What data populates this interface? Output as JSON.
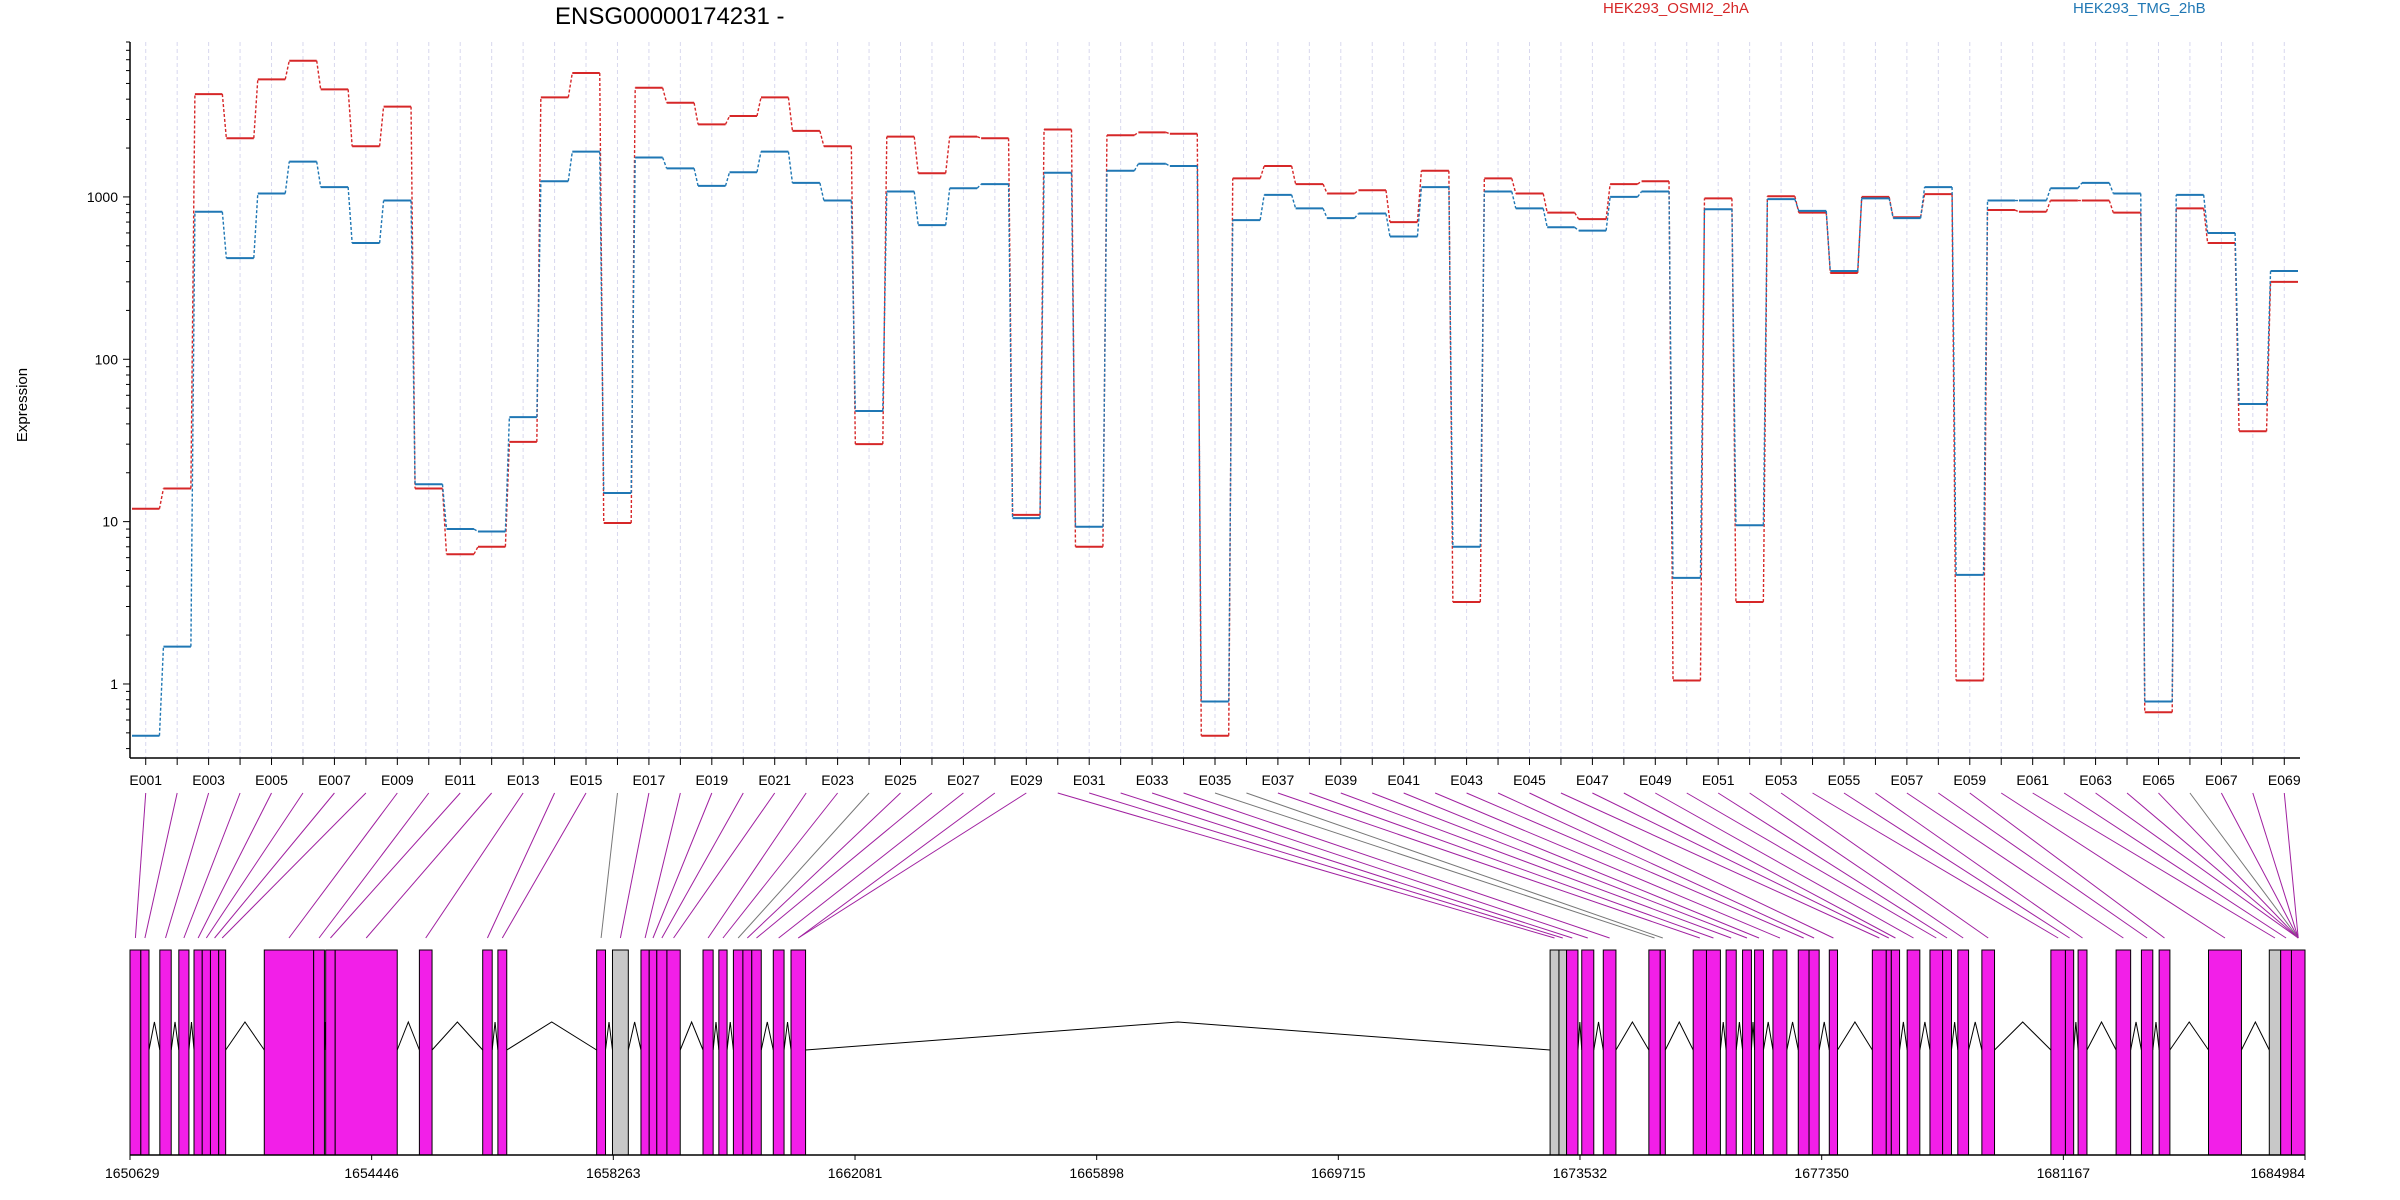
{
  "chart_data": {
    "type": "line",
    "title": "ENSG00000174231 -",
    "ylabel": "Expression",
    "yscale": "log",
    "ylim": [
      0.35,
      9000
    ],
    "yticks": [
      1,
      10,
      100,
      1000
    ],
    "ytick_labels": [
      "1",
      "10",
      "100",
      "1000"
    ],
    "legend_position": "top",
    "series": [
      {
        "name": "HEK293_OSMI2_2hA",
        "color": "#d62728",
        "values": [
          12,
          16,
          4300,
          2300,
          5300,
          6900,
          4600,
          2050,
          3600,
          16,
          6.3,
          7,
          31,
          4100,
          5800,
          9.8,
          4700,
          3800,
          2800,
          3150,
          4100,
          2550,
          2050,
          30,
          2350,
          1400,
          2350,
          2300,
          11,
          2600,
          7,
          2400,
          2500,
          2450,
          0.48,
          1300,
          1550,
          1200,
          1050,
          1100,
          700,
          1450,
          3.2,
          1300,
          1050,
          800,
          730,
          1200,
          1250,
          1.05,
          980,
          3.2,
          1010,
          800,
          340,
          1000,
          750,
          1040,
          1.05,
          830,
          810,
          950,
          950,
          800,
          0.67,
          850,
          520,
          36,
          300
        ]
      },
      {
        "name": "HEK293_TMG_2hB",
        "color": "#1f77b4",
        "values": [
          0.48,
          1.7,
          810,
          420,
          1050,
          1650,
          1150,
          520,
          950,
          17,
          9,
          8.7,
          44,
          1250,
          1900,
          15,
          1750,
          1500,
          1170,
          1420,
          1900,
          1220,
          950,
          48,
          1080,
          670,
          1130,
          1200,
          10.5,
          1410,
          9.3,
          1450,
          1600,
          1550,
          0.78,
          720,
          1030,
          850,
          740,
          790,
          570,
          1150,
          7,
          1080,
          850,
          650,
          620,
          1000,
          1080,
          4.5,
          840,
          9.5,
          970,
          820,
          350,
          980,
          740,
          1150,
          4.7,
          950,
          950,
          1130,
          1220,
          1050,
          0.78,
          1030,
          600,
          53,
          350
        ]
      }
    ],
    "categories": [
      "E001",
      "E002",
      "E003",
      "E004",
      "E005",
      "E006",
      "E007",
      "E008",
      "E009",
      "E010",
      "E011",
      "E012",
      "E013",
      "E014",
      "E015",
      "E016",
      "E017",
      "E018",
      "E019",
      "E020",
      "E021",
      "E022",
      "E023",
      "E024",
      "E025",
      "E026",
      "E027",
      "E028",
      "E029",
      "E030",
      "E031",
      "E032",
      "E033",
      "E034",
      "E035",
      "E036",
      "E037",
      "E038",
      "E039",
      "E040",
      "E041",
      "E042",
      "E043",
      "E044",
      "E045",
      "E046",
      "E047",
      "E048",
      "E049",
      "E050",
      "E051",
      "E052",
      "E053",
      "E054",
      "E055",
      "E056",
      "E057",
      "E058",
      "E059",
      "E060",
      "E061",
      "E062",
      "E063",
      "E064",
      "E065",
      "E066",
      "E067",
      "E068",
      "E069"
    ],
    "xtick_labels": [
      "E001",
      "E003",
      "E005",
      "E007",
      "E009",
      "E011",
      "E013",
      "E015",
      "E017",
      "E019",
      "E021",
      "E023",
      "E025",
      "E027",
      "E029",
      "E031",
      "E033",
      "E035",
      "E037",
      "E039",
      "E041",
      "E043",
      "E045",
      "E047",
      "E049",
      "E051",
      "E053",
      "E055",
      "E057",
      "E059",
      "E061",
      "E063",
      "E065",
      "E067",
      "E069"
    ],
    "gene_model": {
      "xlim": [
        1650629,
        1684984
      ],
      "tick_values": [
        1650629,
        1654446,
        1658263,
        1662081,
        1665898,
        1669715,
        1673532,
        1677350,
        1681167,
        1684984
      ],
      "tick_labels": [
        "1650629",
        "1654446",
        "1658263",
        "1662081",
        "1665898",
        "1669715",
        "1673532",
        "1677350",
        "1681167",
        "1684984"
      ],
      "exon_color": "#f21fe8",
      "noncoding_color": "#c8c8c8",
      "connector_color": "#a020a0",
      "exons": [
        [
          1650629,
          1650800
        ],
        [
          1650800,
          1650929
        ],
        [
          1651100,
          1651280
        ],
        [
          1651400,
          1651560
        ],
        [
          1651640,
          1651770
        ],
        [
          1651770,
          1651900
        ],
        [
          1651900,
          1652030
        ],
        [
          1652030,
          1652140
        ],
        [
          1652750,
          1653530
        ],
        [
          1653530,
          1653700
        ],
        [
          1653720,
          1653870
        ],
        [
          1653870,
          1654850
        ],
        [
          1655200,
          1655400
        ],
        [
          1656200,
          1656350
        ],
        [
          1656440,
          1656580
        ],
        [
          1658000,
          1658140
        ],
        [
          1658250,
          1658500
        ],
        [
          1658700,
          1658830
        ],
        [
          1658830,
          1658950
        ],
        [
          1658950,
          1659110
        ],
        [
          1659110,
          1659320
        ],
        [
          1659680,
          1659840
        ],
        [
          1659930,
          1660060
        ],
        [
          1660160,
          1660310
        ],
        [
          1660310,
          1660450
        ],
        [
          1660450,
          1660600
        ],
        [
          1660790,
          1660960
        ],
        [
          1661070,
          1661300
        ],
        [
          1673060,
          1673200
        ],
        [
          1673200,
          1673320
        ],
        [
          1673320,
          1673500
        ],
        [
          1673560,
          1673750
        ],
        [
          1673900,
          1674100
        ],
        [
          1674620,
          1674800
        ],
        [
          1674800,
          1674880
        ],
        [
          1675320,
          1675530
        ],
        [
          1675530,
          1675750
        ],
        [
          1675840,
          1676000
        ],
        [
          1676100,
          1676240
        ],
        [
          1676290,
          1676430
        ],
        [
          1676580,
          1676800
        ],
        [
          1676980,
          1677150
        ],
        [
          1677150,
          1677310
        ],
        [
          1677470,
          1677600
        ],
        [
          1678150,
          1678370
        ],
        [
          1678370,
          1678450
        ],
        [
          1678450,
          1678580
        ],
        [
          1678700,
          1678900
        ],
        [
          1679060,
          1679260
        ],
        [
          1679260,
          1679400
        ],
        [
          1679500,
          1679670
        ],
        [
          1679880,
          1680080
        ],
        [
          1680970,
          1681200
        ],
        [
          1681200,
          1681330
        ],
        [
          1681400,
          1681540
        ],
        [
          1682000,
          1682230
        ],
        [
          1682400,
          1682580
        ],
        [
          1682680,
          1682850
        ],
        [
          1683460,
          1683980
        ],
        [
          1684420,
          1684600
        ],
        [
          1684600,
          1684770
        ],
        [
          1684770,
          1684984
        ]
      ],
      "noncoding": [
        16,
        28,
        29,
        59
      ],
      "exon_links": [
        0,
        1,
        2,
        3,
        4,
        5,
        6,
        7,
        8,
        9,
        10,
        11,
        12,
        13,
        14,
        15,
        16,
        17,
        18,
        19,
        20,
        21,
        22,
        23,
        24,
        25,
        26,
        27,
        27,
        28,
        29,
        30,
        31,
        32,
        33,
        34,
        35,
        36,
        37,
        38,
        39,
        40,
        41,
        42,
        43,
        44,
        45,
        46,
        47,
        48,
        49,
        50,
        51,
        52,
        53,
        54,
        55,
        56,
        57,
        58,
        59,
        60,
        61,
        61,
        61,
        61,
        61,
        61,
        61
      ],
      "gray_links": [
        15,
        23,
        34,
        35,
        65
      ]
    }
  }
}
